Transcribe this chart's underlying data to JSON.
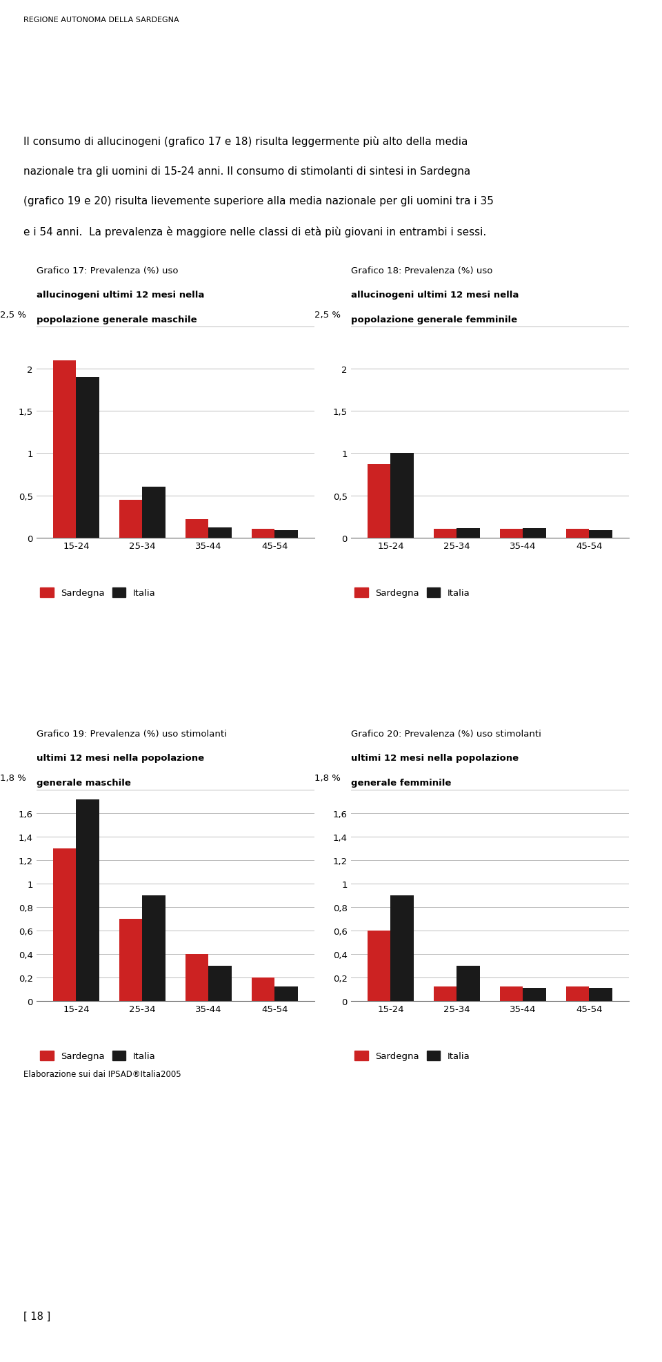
{
  "header": "REGIONE AUTONOMA DELLA SARDEGNA",
  "intro_line1": "Il consumo di allucinogeni (grafico 17 e 18) risulta leggermente più alto della media",
  "intro_line2": "nazionale tra gli uomini di 15-24 anni. Il consumo di stimolanti di sintesi in Sardegna",
  "intro_line3": "(grafico 19 e 20) risulta lievemente superiore alla media nazionale per gli uomini tra i 35",
  "intro_line4": "e i 54 anni.  La prevalenza è maggiore nelle classi di età più giovani in entrambi i sessi.",
  "footer_text": "Elaborazione sui dai IPSAD®Italia2005",
  "page_number": "[ 18 ]",
  "categories": [
    "15-24",
    "25-34",
    "35-44",
    "45-54"
  ],
  "graphs": [
    {
      "title_normal": "Grafico 17: Prevalenza (%) uso",
      "title_bold": "allucinogeni ultimi 12 mesi nella",
      "title_bold2": "popolazione generale maschile",
      "ylim": [
        0,
        2.5
      ],
      "yticks": [
        0,
        0.5,
        1,
        1.5,
        2
      ],
      "ytop_label": "2,5 %",
      "sardegna": [
        2.1,
        0.45,
        0.22,
        0.1
      ],
      "italia": [
        1.9,
        0.6,
        0.12,
        0.09
      ]
    },
    {
      "title_normal": "Grafico 18: Prevalenza (%) uso",
      "title_bold": "allucinogeni ultimi 12 mesi nella",
      "title_bold2": "popolazione generale femminile",
      "ylim": [
        0,
        2.5
      ],
      "yticks": [
        0,
        0.5,
        1,
        1.5,
        2
      ],
      "ytop_label": "2,5 %",
      "sardegna": [
        0.87,
        0.1,
        0.1,
        0.1
      ],
      "italia": [
        1.0,
        0.11,
        0.11,
        0.09
      ]
    },
    {
      "title_normal": "Grafico 19: Prevalenza (%) uso stimolanti",
      "title_bold": "ultimi 12 mesi nella popolazione",
      "title_bold2": "generale maschile",
      "ylim": [
        0,
        1.8
      ],
      "yticks": [
        0,
        0.2,
        0.4,
        0.6,
        0.8,
        1.0,
        1.2,
        1.4,
        1.6
      ],
      "ytop_label": "1,8 %",
      "sardegna": [
        1.3,
        0.7,
        0.4,
        0.2
      ],
      "italia": [
        1.72,
        0.9,
        0.3,
        0.12
      ]
    },
    {
      "title_normal": "Grafico 20: Prevalenza (%) uso stimolanti",
      "title_bold": "ultimi 12 mesi nella popolazione",
      "title_bold2": "generale femminile",
      "ylim": [
        0,
        1.8
      ],
      "yticks": [
        0,
        0.2,
        0.4,
        0.6,
        0.8,
        1.0,
        1.2,
        1.4,
        1.6
      ],
      "ytop_label": "1,8 %",
      "sardegna": [
        0.6,
        0.12,
        0.12,
        0.12
      ],
      "italia": [
        0.9,
        0.3,
        0.11,
        0.11
      ]
    }
  ],
  "color_sardegna": "#cc2222",
  "color_italia": "#1a1a1a",
  "legend_sardegna": "Sardegna",
  "legend_italia": "Italia"
}
